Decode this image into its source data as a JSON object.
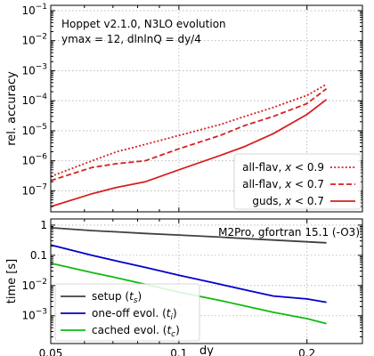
{
  "chart_data": [
    {
      "type": "line",
      "panel": "top",
      "annotation_lines": [
        "Hoppet v2.1.0, N3LO evolution",
        "ymax = 12, dlnlnQ = dy/4"
      ],
      "xlabel": "",
      "ylabel": "rel. accuracy",
      "xscale": "log",
      "yscale": "log",
      "xlim": [
        0.05,
        0.27
      ],
      "ylim": [
        2e-08,
        0.15
      ],
      "grid": true,
      "legend_position": "bottom-right",
      "yticks": [
        {
          "base": "10",
          "exp": "−1",
          "value": 0.1
        },
        {
          "base": "10",
          "exp": "−2",
          "value": 0.01
        },
        {
          "base": "10",
          "exp": "−3",
          "value": 0.001
        },
        {
          "base": "10",
          "exp": "−4",
          "value": 0.0001
        },
        {
          "base": "10",
          "exp": "−5",
          "value": 1e-05
        },
        {
          "base": "10",
          "exp": "−6",
          "value": 1e-06
        },
        {
          "base": "10",
          "exp": "−7",
          "value": 1e-07
        }
      ],
      "x": [
        0.05,
        0.0625,
        0.0714,
        0.0833,
        0.1,
        0.125,
        0.1429,
        0.1667,
        0.2,
        0.2222
      ],
      "series": [
        {
          "label": "all-flav, ",
          "var": "x",
          "cond": " < 0.9",
          "color": "#d62020",
          "dash": "2 2.2",
          "values": [
            3e-07,
            1e-06,
            2e-06,
            3.5e-06,
            7e-06,
            1.6e-05,
            3e-05,
            6e-05,
            0.00015,
            0.00035
          ]
        },
        {
          "label": "all-flav, ",
          "var": "x",
          "cond": " < 0.7",
          "color": "#d62020",
          "dash": "6 3",
          "values": [
            2.2e-07,
            6e-07,
            8e-07,
            1e-06,
            2.5e-06,
            7e-06,
            1.5e-05,
            3e-05,
            8e-05,
            0.00025
          ]
        },
        {
          "label": "guds, ",
          "var": "x",
          "cond": " < 0.7",
          "color": "#d62020",
          "dash": "",
          "values": [
            3e-08,
            8e-08,
            1.3e-07,
            2e-07,
            5e-07,
            1.5e-06,
            3e-06,
            8e-06,
            3.5e-05,
            0.00011
          ]
        }
      ]
    },
    {
      "type": "line",
      "panel": "bottom",
      "annotation": "M2Pro, gfortran 15.1 (-O3)",
      "xlabel": "dy",
      "ylabel": "time [s]",
      "xscale": "log",
      "yscale": "log",
      "xlim": [
        0.05,
        0.27
      ],
      "ylim": [
        0.00012,
        1.6
      ],
      "grid": true,
      "legend_position": "bottom-left",
      "xticks": [
        {
          "label": "0.05",
          "value": 0.05
        },
        {
          "label": "0.1",
          "value": 0.1
        },
        {
          "label": "0.2",
          "value": 0.2
        }
      ],
      "yticks": [
        {
          "label": "1",
          "value": 1
        },
        {
          "label": "0.1",
          "value": 0.1
        },
        {
          "base": "10",
          "exp": "−2",
          "value": 0.01
        },
        {
          "base": "10",
          "exp": "−3",
          "value": 0.001
        }
      ],
      "x": [
        0.05,
        0.0625,
        0.0714,
        0.0833,
        0.1,
        0.125,
        0.1429,
        0.1667,
        0.2,
        0.2222
      ],
      "series": [
        {
          "label": "setup (",
          "var": "t",
          "sub": "s",
          "suffix": ")",
          "color": "#404040",
          "values": [
            0.82,
            0.66,
            0.6,
            0.53,
            0.47,
            0.4,
            0.36,
            0.32,
            0.28,
            0.26
          ]
        },
        {
          "label": "one-off evol. (",
          "var": "t",
          "sub": "i",
          "suffix": ")",
          "color": "#0000cc",
          "values": [
            0.22,
            0.1,
            0.065,
            0.04,
            0.022,
            0.011,
            0.0072,
            0.0045,
            0.0036,
            0.0028
          ]
        },
        {
          "label": "cached evol. (",
          "var": "t",
          "sub": "c",
          "suffix": ")",
          "color": "#10bb10",
          "values": [
            0.055,
            0.027,
            0.018,
            0.011,
            0.006,
            0.0032,
            0.0021,
            0.0013,
            0.0008,
            0.00055
          ]
        }
      ]
    }
  ]
}
